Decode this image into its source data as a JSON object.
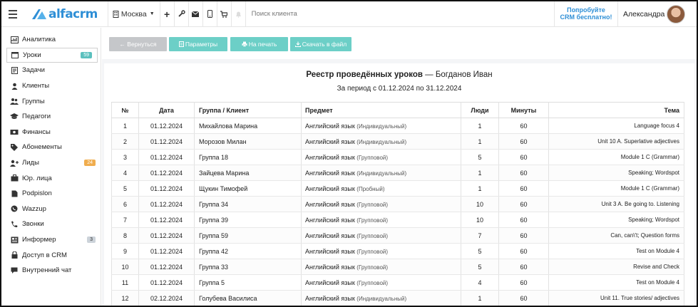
{
  "app": {
    "logo_text": "alfacrm"
  },
  "topbar": {
    "city": "Москва",
    "search_placeholder": "Поиск клиента",
    "promo_line1": "Попробуйте",
    "promo_line2": "CRM бесплатно!",
    "user_name": "Александра"
  },
  "sidebar": {
    "items": [
      {
        "label": "Аналитика",
        "icon": "analytics-icon"
      },
      {
        "label": "Уроки",
        "icon": "calendar-icon",
        "badge": "59",
        "badge_color": "#5bc0be",
        "active": true
      },
      {
        "label": "Задачи",
        "icon": "tasks-icon"
      },
      {
        "label": "Клиенты",
        "icon": "client-icon"
      },
      {
        "label": "Группы",
        "icon": "groups-icon"
      },
      {
        "label": "Педагоги",
        "icon": "graduation-cap-icon"
      },
      {
        "label": "Финансы",
        "icon": "money-icon"
      },
      {
        "label": "Абонементы",
        "icon": "tag-icon"
      },
      {
        "label": "Лиды",
        "icon": "add-user-icon",
        "badge": "24",
        "badge_color": "#f0ad4e"
      },
      {
        "label": "Юр. лица",
        "icon": "briefcase-icon"
      },
      {
        "label": "Podpislon",
        "icon": "document-icon"
      },
      {
        "label": "Wazzup",
        "icon": "whatsapp-icon"
      },
      {
        "label": "Звонки",
        "icon": "phone-icon"
      },
      {
        "label": "Информер",
        "icon": "newspaper-icon",
        "badge": "3",
        "badge_color": "#ccd3da"
      },
      {
        "label": "Доступ в CRM",
        "icon": "lock-icon"
      },
      {
        "label": "Внутренний чат",
        "icon": "chat-icon"
      }
    ]
  },
  "toolbar": {
    "back_label": "← Вернуться",
    "params_label": "Параметры",
    "print_label": "На печать",
    "download_label": "Скачать в файл"
  },
  "report": {
    "title_prefix": "Реестр проведённых уроков",
    "title_suffix": " — Богданов Иван",
    "period": "За период с 01.12.2024 по 31.12.2024",
    "columns": [
      "№",
      "Дата",
      "Группа / Клиент",
      "Предмет",
      "Люди",
      "Минуты",
      "Тема"
    ],
    "rows": [
      {
        "num": "1",
        "date": "01.12.2024",
        "group": "Михайлова Марина",
        "subject": "Английский язык",
        "type": "(Индивидуальный)",
        "people": "1",
        "minutes": "60",
        "theme": "Language focus 4"
      },
      {
        "num": "2",
        "date": "01.12.2024",
        "group": "Морозов Милан",
        "subject": "Английский язык",
        "type": "(Индивидуальный)",
        "people": "1",
        "minutes": "60",
        "theme": "Unit 10 A. Superlative adjectives"
      },
      {
        "num": "3",
        "date": "01.12.2024",
        "group": "Группа 18",
        "subject": "Английский язык",
        "type": "(Групповой)",
        "people": "5",
        "minutes": "60",
        "theme": "Module 1 C (Grammar)"
      },
      {
        "num": "4",
        "date": "01.12.2024",
        "group": "Зайцева Марина",
        "subject": "Английский язык",
        "type": "(Индивидуальный)",
        "people": "1",
        "minutes": "60",
        "theme": "Speaking; Wordspot"
      },
      {
        "num": "5",
        "date": "01.12.2024",
        "group": "Щукин Тимофей",
        "subject": "Английский язык",
        "type": "(Пробный)",
        "people": "1",
        "minutes": "60",
        "theme": "Module 1 C (Grammar)"
      },
      {
        "num": "6",
        "date": "01.12.2024",
        "group": "Группа 34",
        "subject": "Английский язык",
        "type": "(Групповой)",
        "people": "10",
        "minutes": "60",
        "theme": "Unit 3 A. Be going to. Listening"
      },
      {
        "num": "7",
        "date": "01.12.2024",
        "group": "Группа 39",
        "subject": "Английский язык",
        "type": "(Групповой)",
        "people": "10",
        "minutes": "60",
        "theme": "Speaking; Wordspot"
      },
      {
        "num": "8",
        "date": "01.12.2024",
        "group": "Группа 59",
        "subject": "Английский язык",
        "type": "(Групповой)",
        "people": "7",
        "minutes": "60",
        "theme": "Can, can\\'t; Question forms"
      },
      {
        "num": "9",
        "date": "01.12.2024",
        "group": "Группа 42",
        "subject": "Английский язык",
        "type": "(Групповой)",
        "people": "5",
        "minutes": "60",
        "theme": "Test on Module 4"
      },
      {
        "num": "10",
        "date": "01.12.2024",
        "group": "Группа 33",
        "subject": "Английский язык",
        "type": "(Групповой)",
        "people": "5",
        "minutes": "60",
        "theme": "Revise and Check"
      },
      {
        "num": "11",
        "date": "01.12.2024",
        "group": "Группа 5",
        "subject": "Английский язык",
        "type": "(Групповой)",
        "people": "4",
        "minutes": "60",
        "theme": "Test on Module 4"
      },
      {
        "num": "12",
        "date": "02.12.2024",
        "group": "Голубева Василиса",
        "subject": "Английский язык",
        "type": "(Индивидуальный)",
        "people": "1",
        "minutes": "60",
        "theme": "Unit 11. True stories/ adjectives"
      }
    ]
  }
}
